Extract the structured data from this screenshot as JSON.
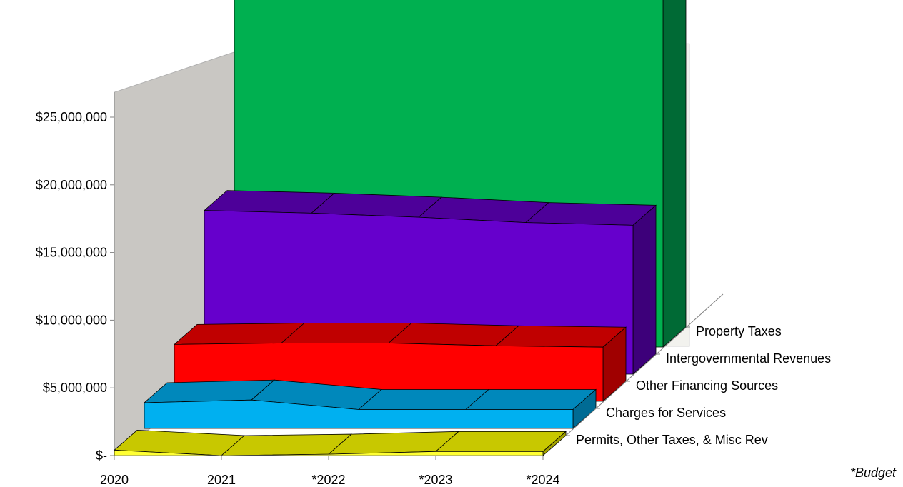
{
  "chart_data": {
    "type": "area",
    "style": "3d-stacked-ribbons",
    "title": "",
    "xlabel": "",
    "ylabel": "",
    "categories": [
      "2020",
      "2021",
      "*2022",
      "*2023",
      "*2024"
    ],
    "ylim": [
      0,
      30000000
    ],
    "y_ticks": [
      0,
      5000000,
      10000000,
      15000000,
      20000000,
      25000000
    ],
    "y_tick_labels": [
      "$-",
      "$5,000,000",
      "$10,000,000",
      "$15,000,000",
      "$20,000,000",
      "$25,000,000"
    ],
    "grid": false,
    "legend": "depth-axis-right",
    "series": [
      {
        "name": "Permits, Other Taxes, & Misc Rev",
        "values": [
          400000,
          0,
          100000,
          300000,
          300000
        ],
        "color": "#ffff33",
        "top_color": "#c8c800",
        "side_color": "#a0a000"
      },
      {
        "name": "Charges for Services",
        "values": [
          1900000,
          2100000,
          1400000,
          1400000,
          1400000
        ],
        "color": "#00b0f0",
        "top_color": "#0088bb",
        "side_color": "#006b94"
      },
      {
        "name": "Other Financing Sources",
        "values": [
          4200000,
          4300000,
          4300000,
          4100000,
          4000000
        ],
        "color": "#ff0000",
        "top_color": "#c00000",
        "side_color": "#a00000"
      },
      {
        "name": "Intergovernmental Revenues",
        "values": [
          12100000,
          11900000,
          11600000,
          11200000,
          11000000
        ],
        "color": "#6600cc",
        "top_color": "#4d0099",
        "side_color": "#3d007a"
      },
      {
        "name": "Property Taxes",
        "values": [
          26300000,
          26600000,
          26200000,
          27300000,
          27300000
        ],
        "color": "#00b050",
        "top_color": "#008040",
        "side_color": "#006a35"
      }
    ],
    "footnote": "*Budget"
  },
  "colors": {
    "back_wall": "#f2f2ee",
    "side_wall": "#c9c7c3",
    "axis": "#808080"
  }
}
